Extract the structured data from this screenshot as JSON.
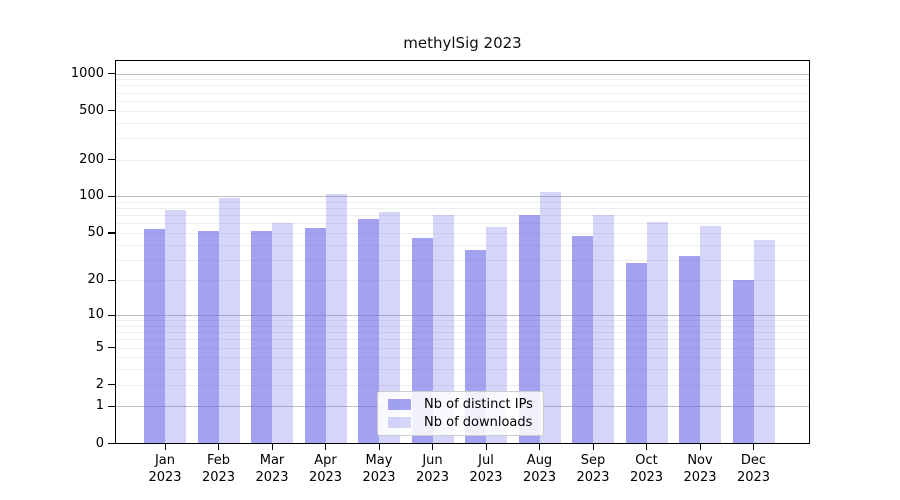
{
  "chart_data": {
    "type": "bar",
    "title": "methylSig 2023",
    "categories": [
      "Jan 2023",
      "Feb 2023",
      "Mar 2023",
      "Apr 2023",
      "May 2023",
      "Jun 2023",
      "Jul 2023",
      "Aug 2023",
      "Sep 2023",
      "Oct 2023",
      "Nov 2023",
      "Dec 2023"
    ],
    "month_labels": [
      "Jan",
      "Feb",
      "Mar",
      "Apr",
      "May",
      "Jun",
      "Jul",
      "Aug",
      "Sep",
      "Oct",
      "Nov",
      "Dec"
    ],
    "year_label": "2023",
    "series": [
      {
        "name": "Nb of distinct IPs",
        "key": "distinct-ips",
        "color_hex": "#a2a2f0",
        "css_color": "rgba(105,105,232,0.62)",
        "values": [
          54,
          52,
          52,
          55,
          65,
          45,
          36,
          70,
          47,
          28,
          32,
          20
        ]
      },
      {
        "name": "Nb of downloads",
        "key": "downloads",
        "color_hex": "#d5d5f8",
        "css_color": "rgba(105,105,232,0.28)",
        "values": [
          78,
          97,
          60,
          105,
          75,
          70,
          56,
          109,
          70,
          62,
          57,
          44
        ]
      }
    ],
    "y_axis": {
      "scale": "log10(x+1)",
      "ticks": [
        0,
        1,
        2,
        5,
        10,
        20,
        50,
        100,
        200,
        500,
        1000
      ],
      "range_top": 1280
    },
    "xlabel": "",
    "ylabel": "",
    "grid": "on",
    "legend_position": "bottom-center",
    "colors": {
      "grid_major": "#bfbfbf",
      "grid_minor": "#ededed",
      "spine": "#000000"
    }
  }
}
